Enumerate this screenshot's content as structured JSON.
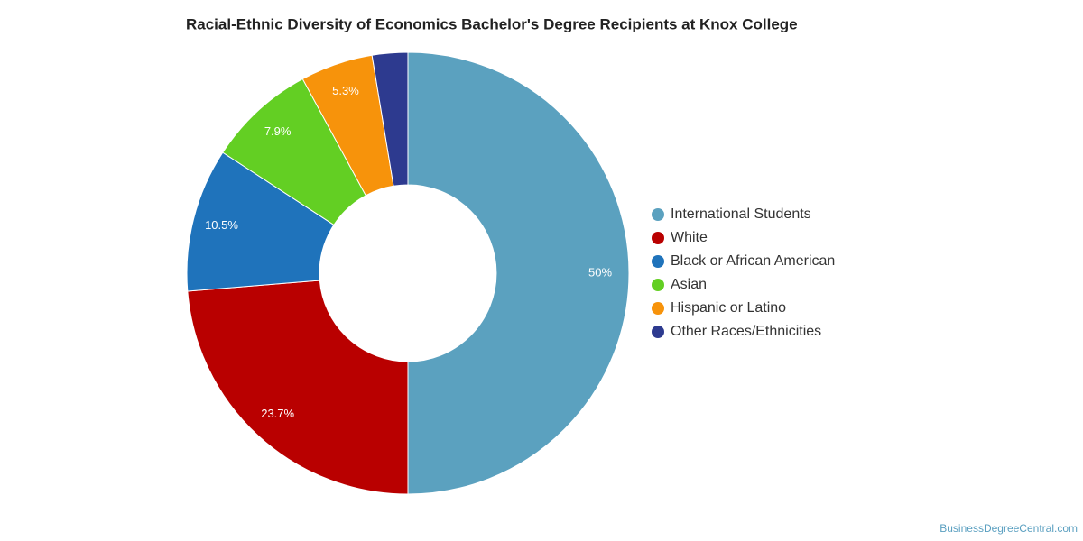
{
  "chart_data": {
    "type": "pie",
    "title": "Racial-Ethnic Diversity of Economics Bachelor's Degree Recipients at Knox College",
    "categories": [
      "International Students",
      "White",
      "Black or African American",
      "Asian",
      "Hispanic or Latino",
      "Other Races/Ethnicities"
    ],
    "values": [
      50,
      23.7,
      10.5,
      7.9,
      5.3,
      2.6
    ],
    "value_labels": [
      "50%",
      "23.7%",
      "10.5%",
      "7.9%",
      "5.3%",
      null
    ],
    "colors": [
      "#5ba1bf",
      "#b90000",
      "#1f73bb",
      "#63cf23",
      "#f7930b",
      "#2d3a8f"
    ],
    "donut": true,
    "legend": "right",
    "source": "BusinessDegreeCentral.com"
  }
}
